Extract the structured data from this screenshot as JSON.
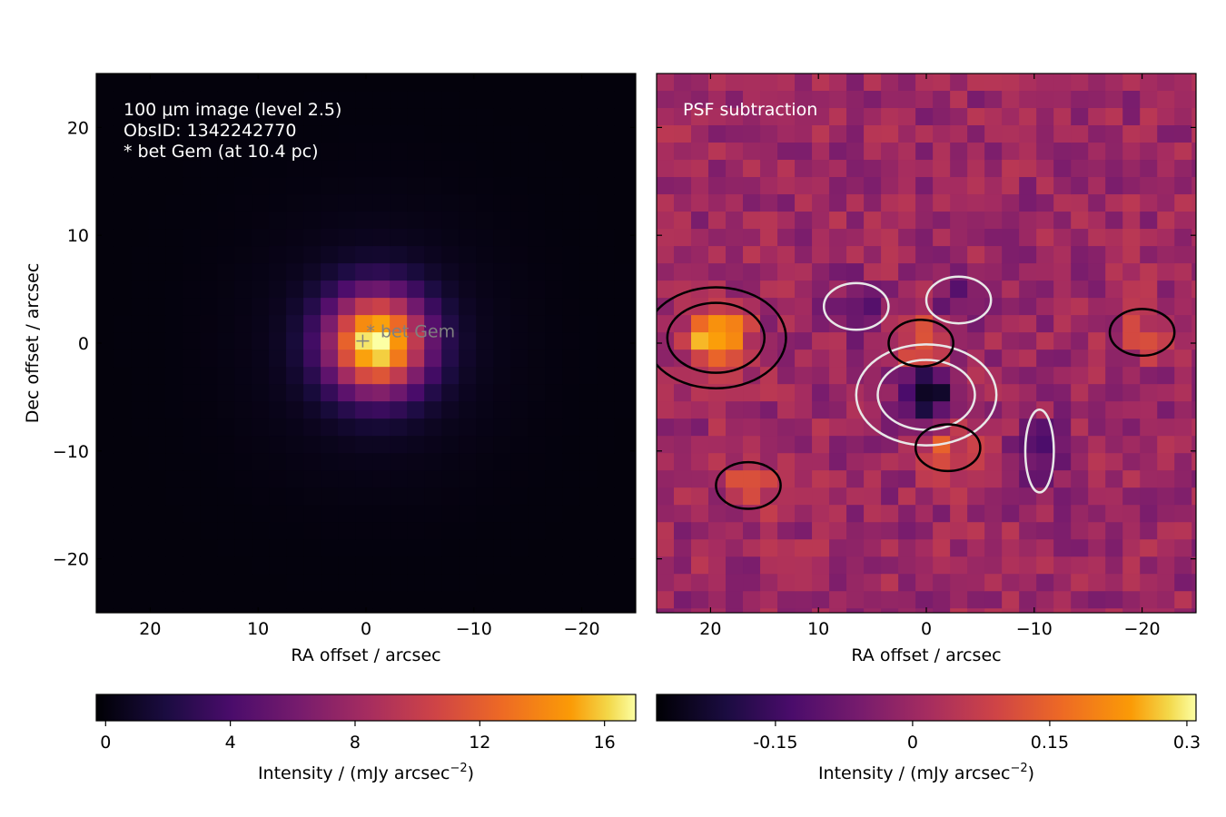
{
  "chart_data": [
    {
      "type": "heatmap",
      "xlabel": "RA offset / arcsec",
      "ylabel": "Dec offset / arcsec",
      "xlim": [
        25,
        -25
      ],
      "ylim": [
        -25,
        25
      ],
      "xticks": [
        20,
        10,
        0,
        -10,
        -20
      ],
      "xtick_labels": [
        "20",
        "10",
        "0",
        "−10",
        "−20"
      ],
      "yticks": [
        20,
        10,
        0,
        -10,
        -20
      ],
      "ytick_labels": [
        "20",
        "10",
        "0",
        "−10",
        "−20"
      ],
      "annotation_lines": [
        "100 μm image (level 2.5)",
        "ObsID: 1342242770",
        "* bet Gem (at 10.4 pc)"
      ],
      "marker": {
        "label": "* bet Gem",
        "ra": 0.3,
        "dec": 0.2
      },
      "peak": {
        "ra": -1.0,
        "dec": 0.0,
        "value": 16.5
      },
      "colorbar": {
        "label": "Intensity / (mJy arcsec",
        "label_sup": "−2",
        "label_suffix": ")",
        "min": -0.3,
        "max": 17,
        "ticks": [
          0,
          4,
          8,
          12,
          16
        ],
        "tick_labels": [
          "0",
          "4",
          "8",
          "12",
          "16"
        ],
        "colormap": "inferno"
      }
    },
    {
      "type": "heatmap",
      "xlabel": "RA offset / arcsec",
      "xlim": [
        25,
        -25
      ],
      "ylim": [
        -25,
        25
      ],
      "xticks": [
        20,
        10,
        0,
        -10,
        -20
      ],
      "xtick_labels": [
        "20",
        "10",
        "0",
        "−10",
        "−20"
      ],
      "annotation": "PSF subtraction",
      "features": [
        {
          "ra": 19.5,
          "dec": 0.5,
          "value": 0.3,
          "sign": "positive"
        },
        {
          "ra": 0.0,
          "dec": -4.8,
          "value": -0.28,
          "sign": "negative"
        },
        {
          "ra": 0.5,
          "dec": 0.0,
          "value": 0.14,
          "sign": "positive"
        },
        {
          "ra": -2.0,
          "dec": -9.7,
          "value": 0.12,
          "sign": "positive"
        },
        {
          "ra": -10.5,
          "dec": -10.0,
          "value": -0.12,
          "sign": "negative"
        },
        {
          "ra": 6.5,
          "dec": 3.4,
          "value": -0.1,
          "sign": "negative"
        },
        {
          "ra": -3.0,
          "dec": 4.0,
          "value": -0.1,
          "sign": "negative"
        },
        {
          "ra": 16.5,
          "dec": -13.2,
          "value": 0.1,
          "sign": "positive"
        },
        {
          "ra": -20.0,
          "dec": 1.0,
          "value": 0.09,
          "sign": "positive"
        }
      ],
      "contour_colors": {
        "positive": "#000000",
        "negative": "#e8e8e8"
      },
      "colorbar": {
        "label": "Intensity / (mJy arcsec",
        "label_sup": "−2",
        "label_suffix": ")",
        "min": -0.28,
        "max": 0.31,
        "ticks": [
          -0.15,
          0,
          0.15,
          0.3
        ],
        "tick_labels": [
          "-0.15",
          "0",
          "0.15",
          "0.3"
        ],
        "colormap": "inferno"
      }
    }
  ]
}
